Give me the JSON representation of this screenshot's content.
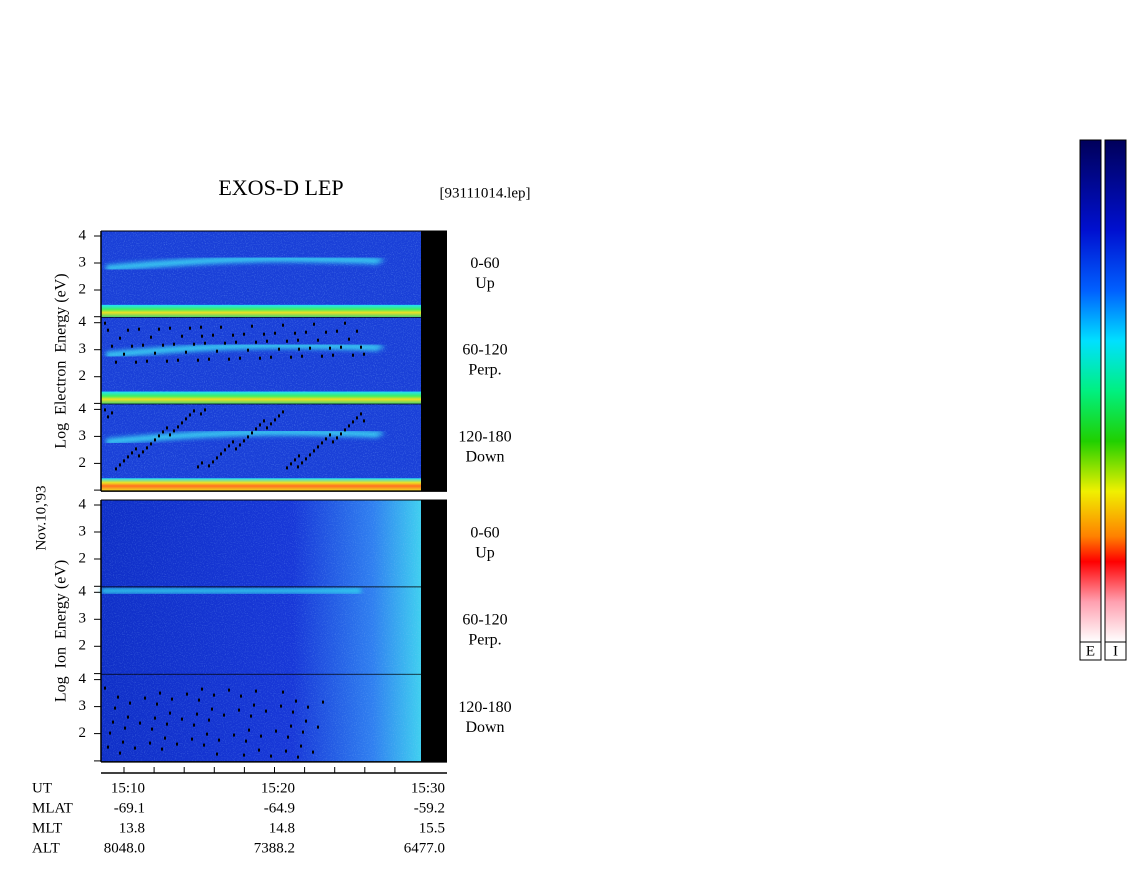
{
  "title": "EXOS-D LEP",
  "file": "[93111014.lep]",
  "date": "Nov.10,'93",
  "groups": [
    {
      "ylabel": "Log  Electron  Energy (eV)",
      "panels": [
        {
          "angle": "0-60",
          "dir": "Up"
        },
        {
          "angle": "60-120",
          "dir": "Perp."
        },
        {
          "angle": "120-180",
          "dir": "Down"
        }
      ]
    },
    {
      "ylabel": "Log  Ion  Energy (eV)",
      "panels": [
        {
          "angle": "0-60",
          "dir": "Up"
        },
        {
          "angle": "60-120",
          "dir": "Perp."
        },
        {
          "angle": "120-180",
          "dir": "Down"
        }
      ]
    }
  ],
  "yticks": [
    4,
    3,
    2
  ],
  "table": {
    "rows": [
      [
        "UT",
        "15:10",
        "15:20",
        "15:30"
      ],
      [
        "MLAT",
        "-69.1",
        "-64.9",
        "-59.2"
      ],
      [
        "MLT",
        "13.8",
        "14.8",
        "15.5"
      ],
      [
        "ALT",
        "8048.0",
        "7388.2",
        "6477.0"
      ]
    ]
  },
  "colorbars": [
    "E",
    "I"
  ]
}
